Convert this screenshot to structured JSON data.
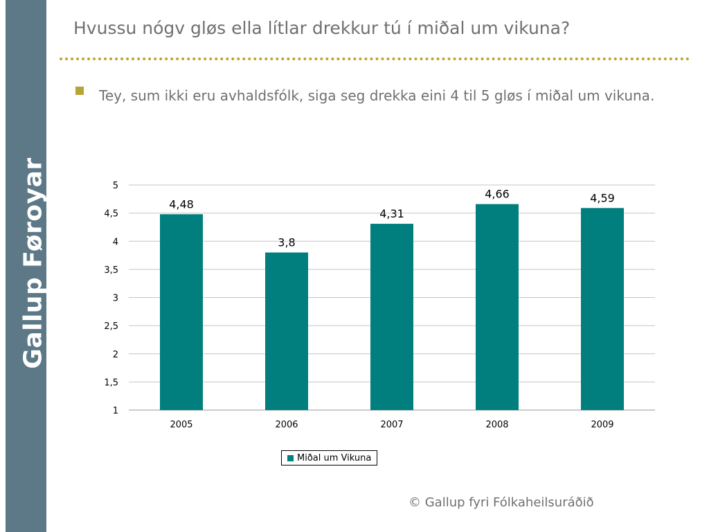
{
  "sidebar": {
    "text": "Gallup Føroyar",
    "color": "#5d7988"
  },
  "slide": {
    "title": "Hvussu nógv gløs ella lítlar drekkur tú í miðal um vikuna?",
    "bullet": "Tey, sum ikki eru avhaldsfólk, siga seg drekka eini 4 til 5 gløs í miðal um vikuna.",
    "copyright": "© Gallup fyri Fólkaheilsuráðið",
    "accent_color": "#b8a431"
  },
  "chart_data": {
    "type": "bar",
    "categories": [
      "2005",
      "2006",
      "2007",
      "2008",
      "2009"
    ],
    "series": [
      {
        "name": "Miðal um Vikuna",
        "values": [
          4.48,
          3.8,
          4.31,
          4.66,
          4.59
        ],
        "color": "#007f7e"
      }
    ],
    "value_labels": [
      "4,48",
      "3,8",
      "4,31",
      "4,66",
      "4,59"
    ],
    "yticks": [
      1,
      1.5,
      2,
      2.5,
      3,
      3.5,
      4,
      4.5,
      5
    ],
    "ytick_labels": [
      "1",
      "1,5",
      "2",
      "2,5",
      "3",
      "3,5",
      "4",
      "4,5",
      "5"
    ],
    "ylim": [
      1,
      5
    ],
    "grid": true,
    "legend_position": "bottom"
  }
}
